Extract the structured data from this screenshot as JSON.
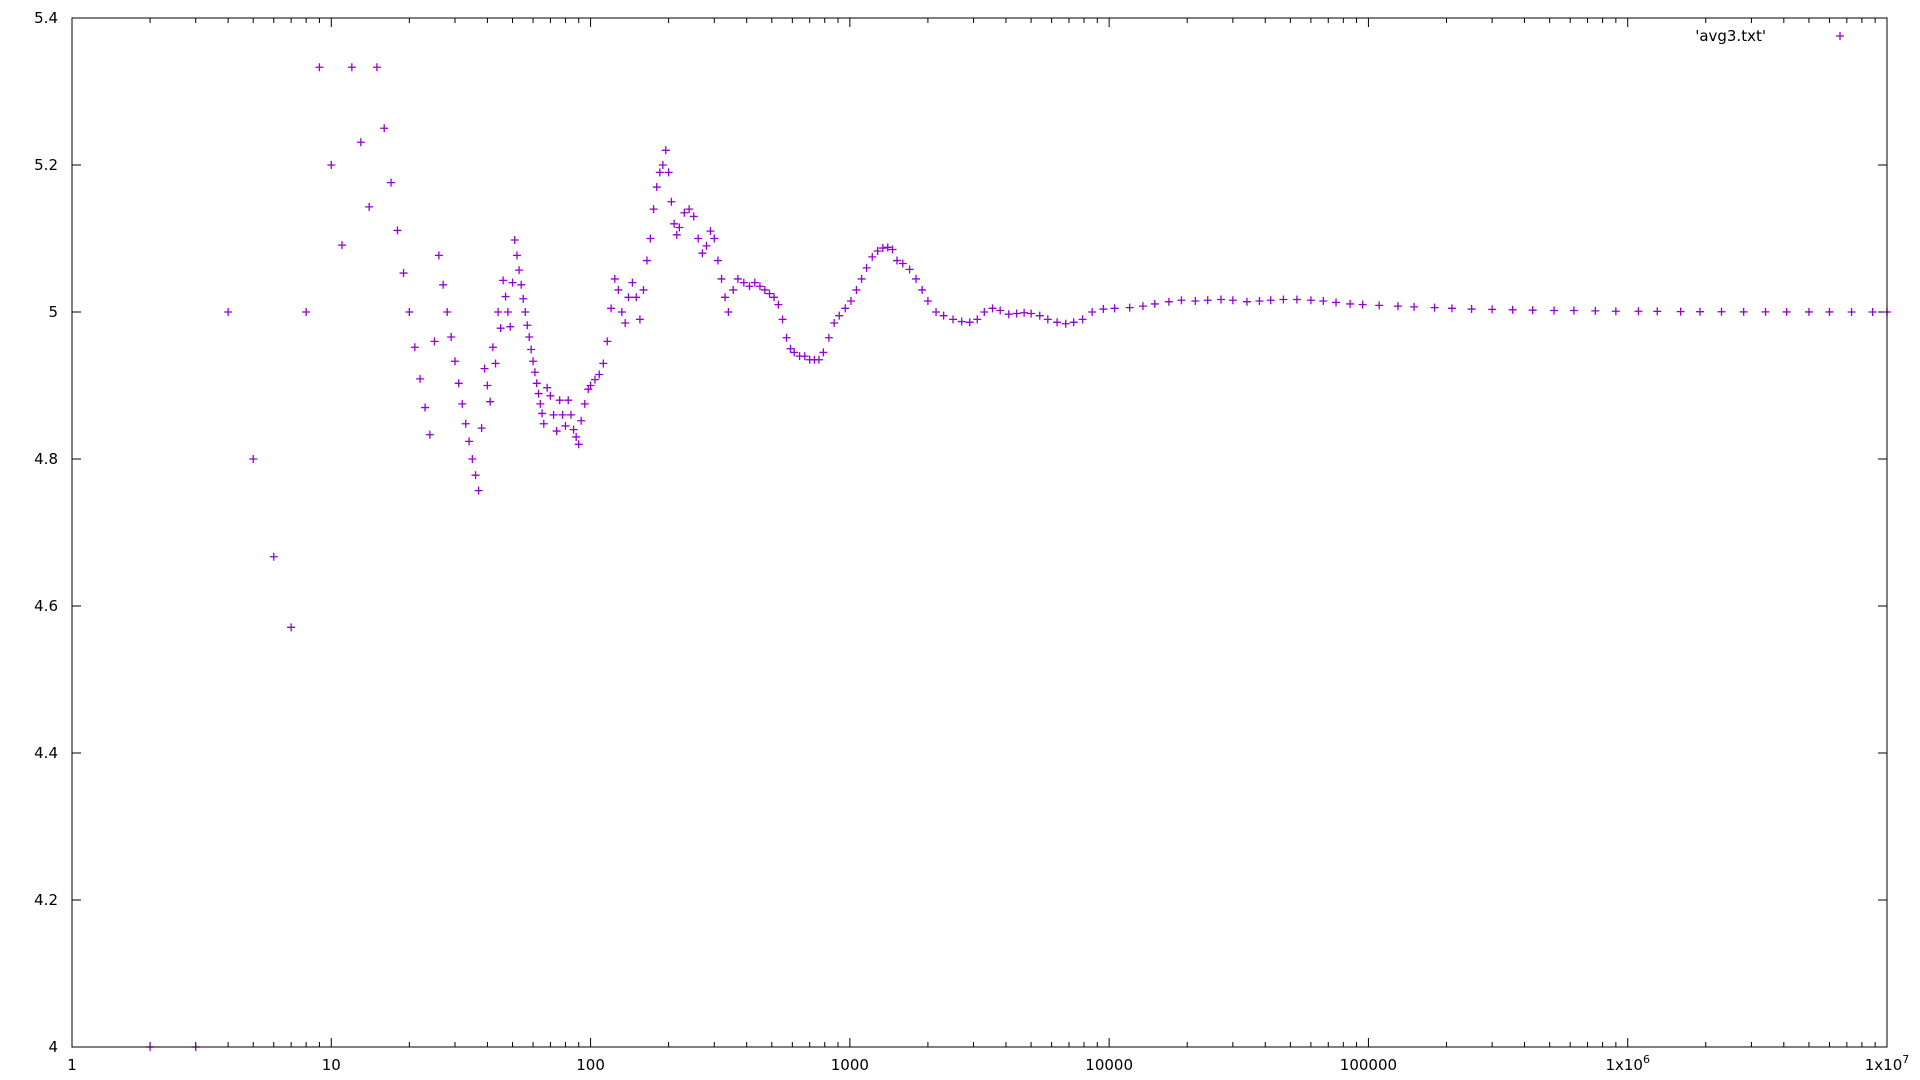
{
  "chart_data": {
    "type": "scatter",
    "title": "",
    "xlabel": "",
    "ylabel": "",
    "x_scale": "log",
    "xlim": [
      1,
      10000000
    ],
    "ylim": [
      4,
      5.4
    ],
    "grid": false,
    "legend_placement": "top-right",
    "marker": "plus",
    "x_ticks": [
      {
        "value": 1,
        "label": "1"
      },
      {
        "value": 10,
        "label": "10"
      },
      {
        "value": 100,
        "label": "100"
      },
      {
        "value": 1000,
        "label": "1000"
      },
      {
        "value": 10000,
        "label": "10000"
      },
      {
        "value": 100000,
        "label": "100000"
      },
      {
        "value": 1000000,
        "label": "1x10",
        "exp": "6"
      },
      {
        "value": 10000000,
        "label": "1x10",
        "exp": "7"
      }
    ],
    "y_ticks": [
      {
        "value": 4,
        "label": "4"
      },
      {
        "value": 4.2,
        "label": "4.2"
      },
      {
        "value": 4.4,
        "label": "4.4"
      },
      {
        "value": 4.6,
        "label": "4.6"
      },
      {
        "value": 4.8,
        "label": "4.8"
      },
      {
        "value": 5,
        "label": "5"
      },
      {
        "value": 5.2,
        "label": "5.2"
      },
      {
        "value": 5.4,
        "label": "5.4"
      }
    ],
    "series": [
      {
        "name": "'avg3.txt'",
        "color": "#9400d3",
        "points": [
          [
            2,
            4.0
          ],
          [
            3,
            4.0
          ],
          [
            4,
            5.0
          ],
          [
            5,
            4.8
          ],
          [
            6,
            4.667
          ],
          [
            7,
            4.571
          ],
          [
            8,
            5.0
          ],
          [
            9,
            5.333
          ],
          [
            10,
            5.2
          ],
          [
            11,
            5.091
          ],
          [
            12,
            5.333
          ],
          [
            13,
            5.231
          ],
          [
            14,
            5.143
          ],
          [
            15,
            5.333
          ],
          [
            16,
            5.25
          ],
          [
            17,
            5.176
          ],
          [
            18,
            5.111
          ],
          [
            19,
            5.053
          ],
          [
            20,
            5.0
          ],
          [
            21,
            4.952
          ],
          [
            22,
            4.909
          ],
          [
            23,
            4.87
          ],
          [
            24,
            4.833
          ],
          [
            25,
            4.96
          ],
          [
            26,
            5.077
          ],
          [
            27,
            5.037
          ],
          [
            28,
            5.0
          ],
          [
            29,
            4.966
          ],
          [
            30,
            4.933
          ],
          [
            31,
            4.903
          ],
          [
            32,
            4.875
          ],
          [
            33,
            4.848
          ],
          [
            34,
            4.824
          ],
          [
            35,
            4.8
          ],
          [
            36,
            4.778
          ],
          [
            37,
            4.757
          ],
          [
            38,
            4.842
          ],
          [
            39,
            4.923
          ],
          [
            40,
            4.9
          ],
          [
            41,
            4.878
          ],
          [
            42,
            4.952
          ],
          [
            43,
            4.93
          ],
          [
            44,
            5.0
          ],
          [
            45,
            4.978
          ],
          [
            46,
            5.043
          ],
          [
            47,
            5.021
          ],
          [
            48,
            5.0
          ],
          [
            49,
            4.98
          ],
          [
            50,
            5.04
          ],
          [
            51,
            5.098
          ],
          [
            52,
            5.077
          ],
          [
            53,
            5.057
          ],
          [
            54,
            5.037
          ],
          [
            55,
            5.018
          ],
          [
            56,
            5.0
          ],
          [
            57,
            4.982
          ],
          [
            58,
            4.966
          ],
          [
            59,
            4.949
          ],
          [
            60,
            4.933
          ],
          [
            61,
            4.918
          ],
          [
            62,
            4.903
          ],
          [
            63,
            4.889
          ],
          [
            64,
            4.875
          ],
          [
            65,
            4.862
          ],
          [
            66,
            4.848
          ],
          [
            68,
            4.897
          ],
          [
            70,
            4.886
          ],
          [
            72,
            4.86
          ],
          [
            74,
            4.838
          ],
          [
            76,
            4.88
          ],
          [
            78,
            4.86
          ],
          [
            80,
            4.845
          ],
          [
            82,
            4.88
          ],
          [
            84,
            4.86
          ],
          [
            86,
            4.84
          ],
          [
            88,
            4.83
          ],
          [
            90,
            4.82
          ],
          [
            92,
            4.852
          ],
          [
            95,
            4.875
          ],
          [
            98,
            4.895
          ],
          [
            100,
            4.9
          ],
          [
            104,
            4.908
          ],
          [
            108,
            4.915
          ],
          [
            112,
            4.93
          ],
          [
            116,
            4.96
          ],
          [
            120,
            5.005
          ],
          [
            124,
            5.045
          ],
          [
            128,
            5.03
          ],
          [
            132,
            5.0
          ],
          [
            136,
            4.985
          ],
          [
            140,
            5.02
          ],
          [
            145,
            5.04
          ],
          [
            150,
            5.02
          ],
          [
            155,
            4.99
          ],
          [
            160,
            5.03
          ],
          [
            165,
            5.07
          ],
          [
            170,
            5.1
          ],
          [
            175,
            5.14
          ],
          [
            180,
            5.17
          ],
          [
            185,
            5.19
          ],
          [
            190,
            5.2
          ],
          [
            195,
            5.22
          ],
          [
            200,
            5.19
          ],
          [
            205,
            5.15
          ],
          [
            210,
            5.12
          ],
          [
            215,
            5.105
          ],
          [
            220,
            5.115
          ],
          [
            230,
            5.135
          ],
          [
            240,
            5.14
          ],
          [
            250,
            5.13
          ],
          [
            260,
            5.1
          ],
          [
            270,
            5.08
          ],
          [
            280,
            5.09
          ],
          [
            290,
            5.11
          ],
          [
            300,
            5.1
          ],
          [
            310,
            5.07
          ],
          [
            320,
            5.045
          ],
          [
            330,
            5.02
          ],
          [
            340,
            5.0
          ],
          [
            355,
            5.03
          ],
          [
            370,
            5.045
          ],
          [
            390,
            5.04
          ],
          [
            410,
            5.035
          ],
          [
            430,
            5.04
          ],
          [
            450,
            5.035
          ],
          [
            470,
            5.03
          ],
          [
            490,
            5.025
          ],
          [
            510,
            5.02
          ],
          [
            530,
            5.01
          ],
          [
            550,
            4.99
          ],
          [
            570,
            4.965
          ],
          [
            590,
            4.95
          ],
          [
            610,
            4.945
          ],
          [
            640,
            4.94
          ],
          [
            670,
            4.94
          ],
          [
            700,
            4.935
          ],
          [
            730,
            4.935
          ],
          [
            760,
            4.935
          ],
          [
            790,
            4.945
          ],
          [
            830,
            4.965
          ],
          [
            870,
            4.985
          ],
          [
            910,
            4.995
          ],
          [
            960,
            5.005
          ],
          [
            1010,
            5.015
          ],
          [
            1060,
            5.03
          ],
          [
            1110,
            5.045
          ],
          [
            1160,
            5.06
          ],
          [
            1220,
            5.075
          ],
          [
            1280,
            5.083
          ],
          [
            1340,
            5.087
          ],
          [
            1400,
            5.088
          ],
          [
            1460,
            5.085
          ],
          [
            1520,
            5.07
          ],
          [
            1600,
            5.066
          ],
          [
            1700,
            5.058
          ],
          [
            1800,
            5.045
          ],
          [
            1900,
            5.03
          ],
          [
            2000,
            5.015
          ],
          [
            2150,
            5.0
          ],
          [
            2300,
            4.995
          ],
          [
            2500,
            4.99
          ],
          [
            2700,
            4.987
          ],
          [
            2900,
            4.986
          ],
          [
            3100,
            4.99
          ],
          [
            3300,
            5.0
          ],
          [
            3550,
            5.005
          ],
          [
            3800,
            5.002
          ],
          [
            4100,
            4.997
          ],
          [
            4400,
            4.998
          ],
          [
            4700,
            4.999
          ],
          [
            5000,
            4.998
          ],
          [
            5400,
            4.995
          ],
          [
            5800,
            4.99
          ],
          [
            6300,
            4.986
          ],
          [
            6800,
            4.984
          ],
          [
            7300,
            4.986
          ],
          [
            7900,
            4.99
          ],
          [
            8600,
            5.0
          ],
          [
            9500,
            5.004
          ],
          [
            10500,
            5.005
          ],
          [
            12000,
            5.006
          ],
          [
            13500,
            5.008
          ],
          [
            15000,
            5.011
          ],
          [
            17000,
            5.014
          ],
          [
            19000,
            5.016
          ],
          [
            21500,
            5.015
          ],
          [
            24000,
            5.016
          ],
          [
            27000,
            5.017
          ],
          [
            30000,
            5.016
          ],
          [
            34000,
            5.014
          ],
          [
            38000,
            5.015
          ],
          [
            42000,
            5.016
          ],
          [
            47000,
            5.017
          ],
          [
            53000,
            5.017
          ],
          [
            60000,
            5.016
          ],
          [
            67000,
            5.015
          ],
          [
            75000,
            5.013
          ],
          [
            85000,
            5.011
          ],
          [
            95000,
            5.01
          ],
          [
            110000,
            5.009
          ],
          [
            130000,
            5.008
          ],
          [
            150000,
            5.007
          ],
          [
            180000,
            5.006
          ],
          [
            210000,
            5.005
          ],
          [
            250000,
            5.004
          ],
          [
            300000,
            5.0035
          ],
          [
            360000,
            5.003
          ],
          [
            430000,
            5.0025
          ],
          [
            520000,
            5.002
          ],
          [
            620000,
            5.002
          ],
          [
            750000,
            5.0015
          ],
          [
            900000,
            5.001
          ],
          [
            1100000,
            5.001
          ],
          [
            1300000,
            5.0008
          ],
          [
            1600000,
            5.0005
          ],
          [
            1900000,
            5.0004
          ],
          [
            2300000,
            5.0003
          ],
          [
            2800000,
            5.0002
          ],
          [
            3400000,
            5.0002
          ],
          [
            4100000,
            5.0001
          ],
          [
            5000000,
            5.0001
          ],
          [
            6000000,
            5.0001
          ],
          [
            7300000,
            5.0
          ],
          [
            8800000,
            5.0
          ],
          [
            10000000,
            5.0
          ]
        ]
      }
    ]
  }
}
